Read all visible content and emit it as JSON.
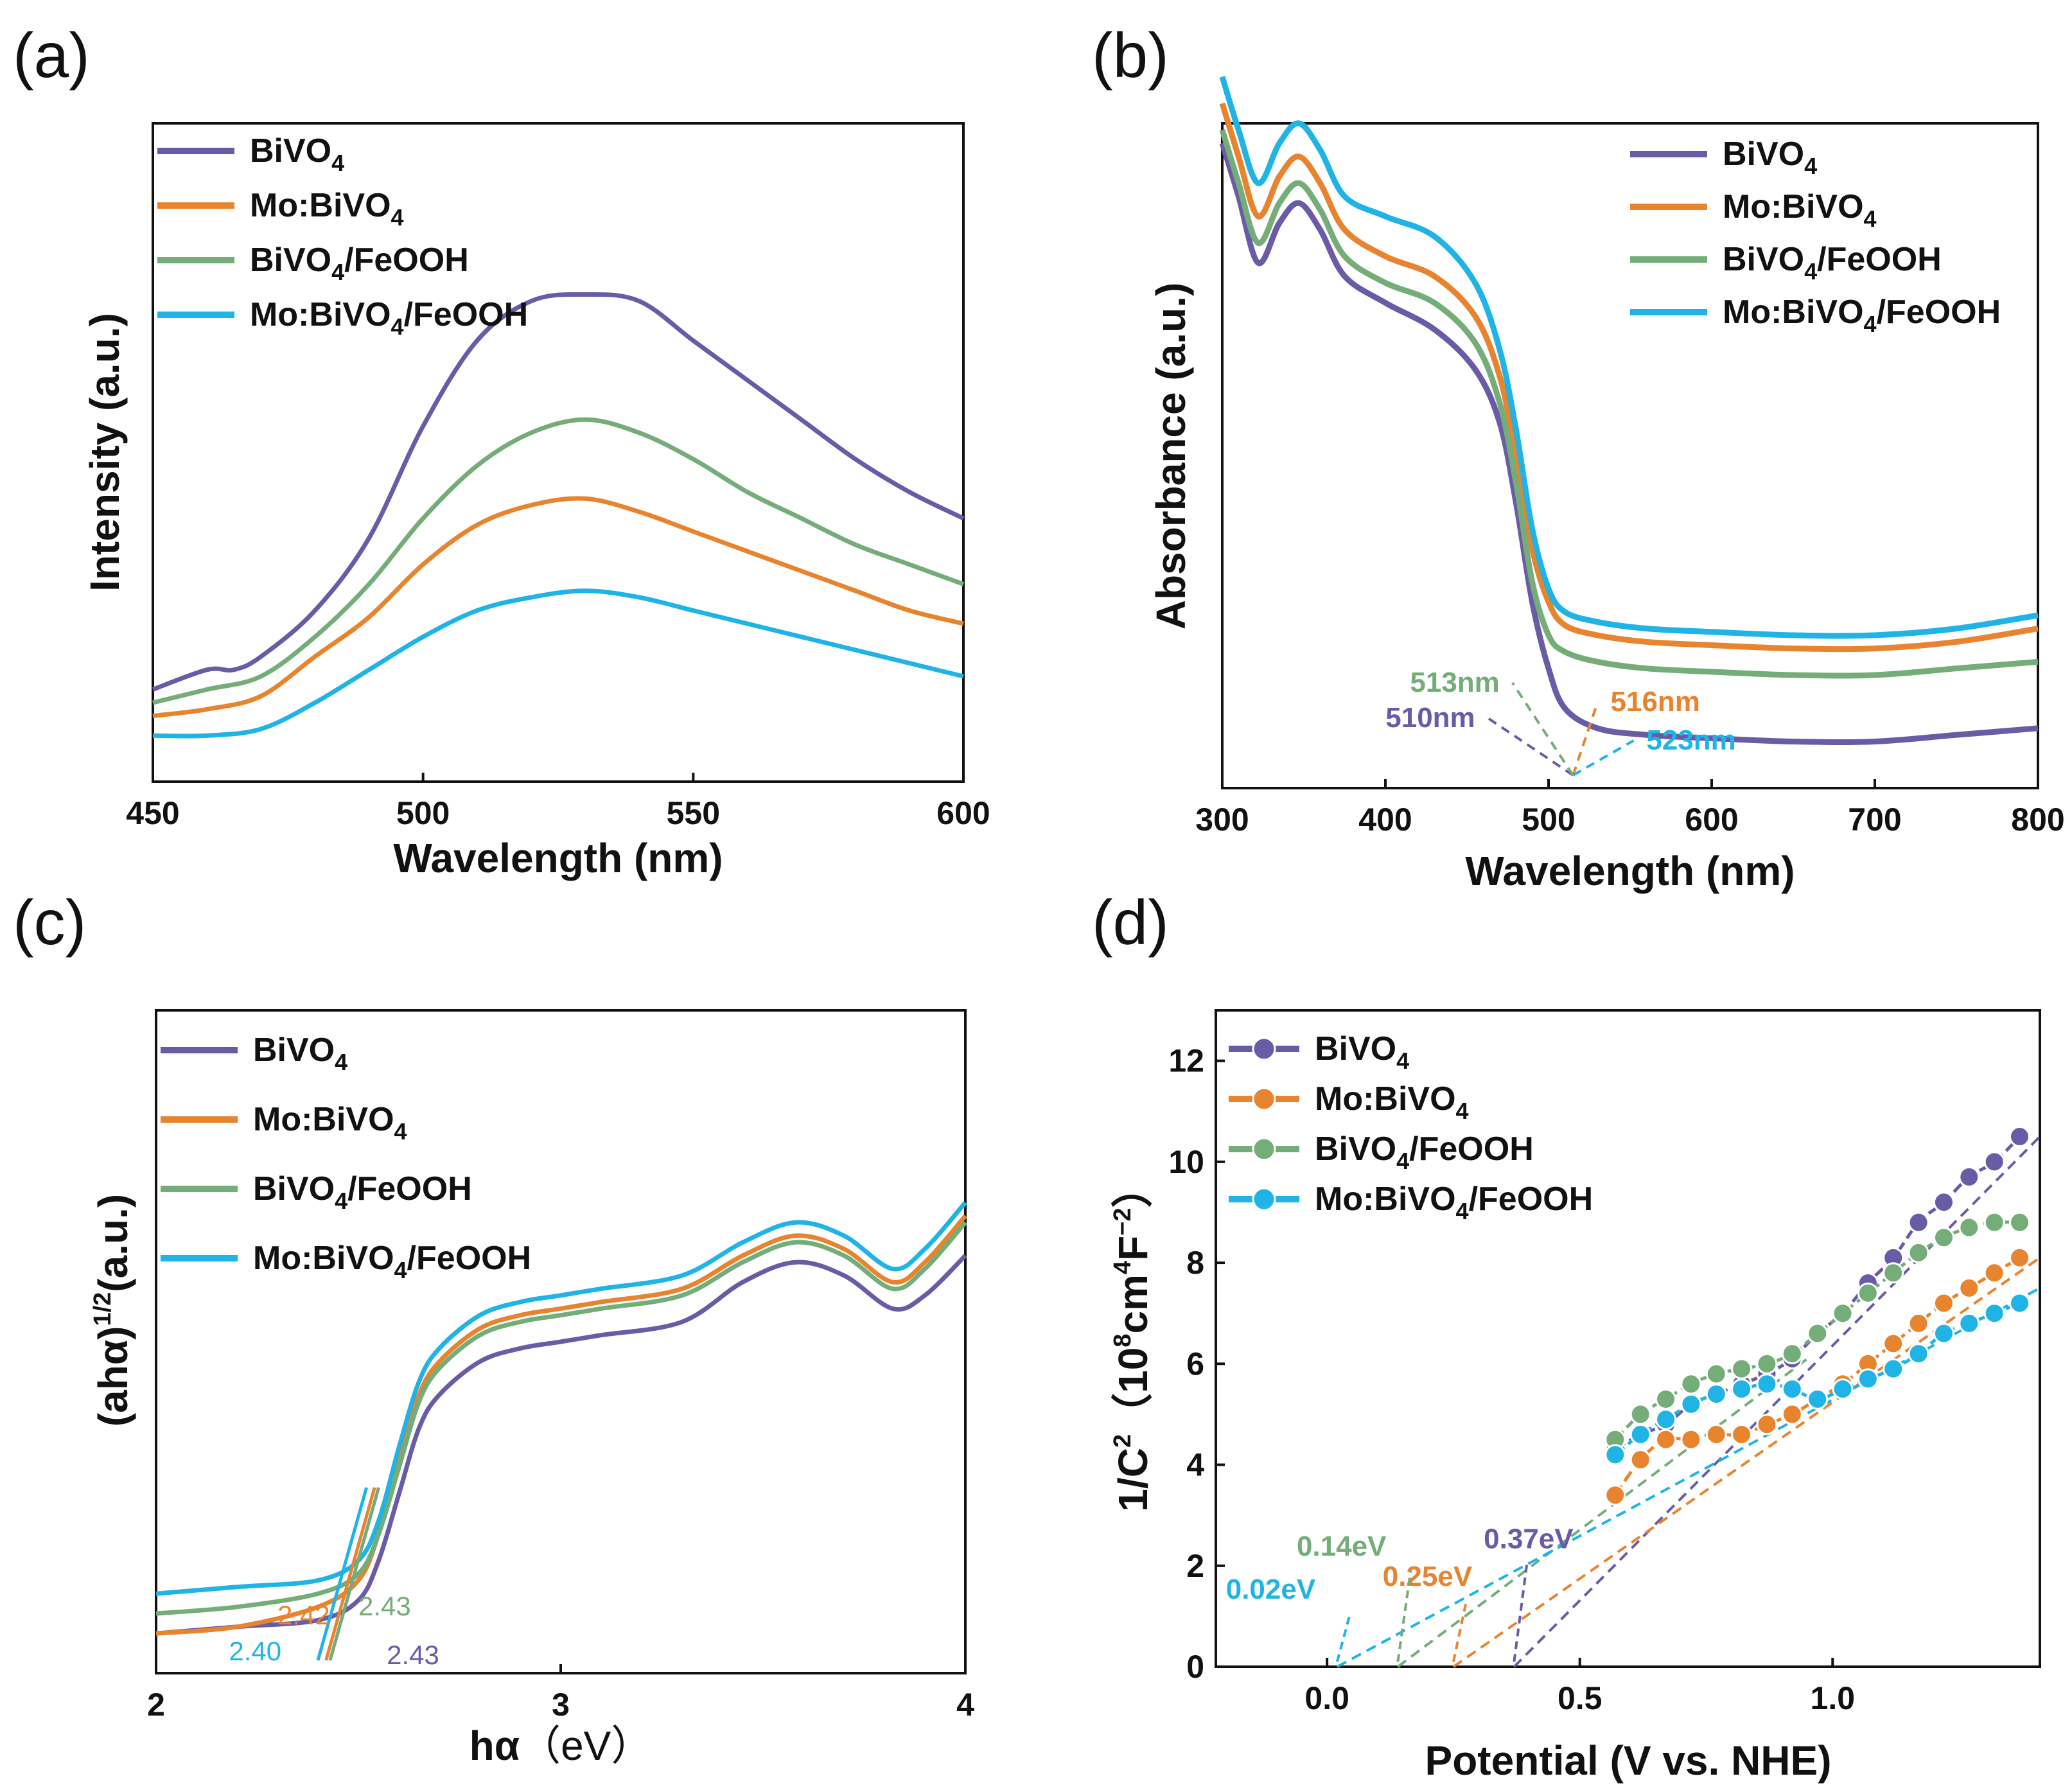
{
  "figure": {
    "colors": {
      "BiVO4": "#6a5ba6",
      "MoBiVO4": "#e8832e",
      "BiVO4FeOOH": "#74ad78",
      "MoBiVO4FeOOH": "#1fb3e6"
    }
  },
  "chart_data": [
    {
      "panel": "(a)",
      "type": "line",
      "xlabel": "Wavelength (nm)",
      "ylabel": "Intensity (a.u.)",
      "xlim": [
        450,
        600
      ],
      "ylim": [
        0,
        1.0
      ],
      "xticks": [
        "450",
        "500",
        "550",
        "600"
      ],
      "legend": [
        "BiVO",
        "Mo:BiVO",
        "BiVO/FeOOH",
        "Mo:BiVO/FeOOH"
      ],
      "legend_sub": "4",
      "series": [
        {
          "name": "BiVO4",
          "color_key": "BiVO4",
          "x": [
            450,
            460,
            465,
            470,
            480,
            490,
            500,
            510,
            520,
            530,
            540,
            550,
            560,
            570,
            580,
            590,
            600
          ],
          "y": [
            0.14,
            0.17,
            0.17,
            0.19,
            0.26,
            0.37,
            0.54,
            0.67,
            0.73,
            0.74,
            0.73,
            0.67,
            0.61,
            0.55,
            0.49,
            0.44,
            0.4
          ]
        },
        {
          "name": "Mo:BiVO4",
          "color_key": "MoBiVO4",
          "x": [
            450,
            460,
            470,
            480,
            490,
            500,
            510,
            520,
            530,
            540,
            550,
            560,
            570,
            580,
            590,
            600
          ],
          "y": [
            0.1,
            0.11,
            0.13,
            0.19,
            0.25,
            0.33,
            0.39,
            0.42,
            0.43,
            0.41,
            0.38,
            0.35,
            0.32,
            0.29,
            0.26,
            0.24
          ]
        },
        {
          "name": "BiVO4/FeOOH",
          "color_key": "BiVO4FeOOH",
          "x": [
            450,
            460,
            470,
            480,
            490,
            500,
            510,
            520,
            530,
            540,
            550,
            560,
            570,
            580,
            590,
            600
          ],
          "y": [
            0.12,
            0.14,
            0.16,
            0.22,
            0.3,
            0.4,
            0.48,
            0.53,
            0.55,
            0.53,
            0.49,
            0.44,
            0.4,
            0.36,
            0.33,
            0.3
          ]
        },
        {
          "name": "Mo:BiVO4/FeOOH",
          "color_key": "MoBiVO4FeOOH",
          "x": [
            450,
            460,
            470,
            480,
            490,
            500,
            510,
            520,
            530,
            540,
            550,
            560,
            570,
            580,
            590,
            600
          ],
          "y": [
            0.07,
            0.07,
            0.08,
            0.12,
            0.17,
            0.22,
            0.26,
            0.28,
            0.29,
            0.28,
            0.26,
            0.24,
            0.22,
            0.2,
            0.18,
            0.16
          ]
        }
      ]
    },
    {
      "panel": "(b)",
      "type": "line",
      "xlabel": "Wavelength (nm)",
      "ylabel": "Absorbance (a.u.)",
      "xlim": [
        300,
        800
      ],
      "ylim": [
        0,
        1.0
      ],
      "xticks": [
        "300",
        "400",
        "500",
        "600",
        "700",
        "800"
      ],
      "legend": [
        "BiVO",
        "Mo:BiVO",
        "BiVO/FeOOH",
        "Mo:BiVO/FeOOH"
      ],
      "legend_sub": "4",
      "annotations": [
        {
          "text": "510nm",
          "color_key": "BiVO4",
          "x_data": 510
        },
        {
          "text": "513nm",
          "color_key": "BiVO4FeOOH",
          "x_data": 513
        },
        {
          "text": "516nm",
          "color_key": "MoBiVO4",
          "x_data": 516
        },
        {
          "text": "523nm",
          "color_key": "MoBiVO4FeOOH",
          "x_data": 523
        }
      ],
      "series": [
        {
          "name": "BiVO4",
          "color_key": "BiVO4",
          "x": [
            300,
            310,
            322,
            335,
            347,
            360,
            375,
            400,
            430,
            455,
            470,
            480,
            490,
            500,
            510,
            530,
            560,
            600,
            650,
            700,
            750,
            800
          ],
          "y": [
            0.97,
            0.89,
            0.79,
            0.85,
            0.88,
            0.84,
            0.77,
            0.73,
            0.69,
            0.63,
            0.55,
            0.43,
            0.28,
            0.18,
            0.12,
            0.09,
            0.08,
            0.075,
            0.07,
            0.07,
            0.08,
            0.09
          ]
        },
        {
          "name": "Mo:BiVO4",
          "color_key": "MoBiVO4",
          "x": [
            300,
            310,
            322,
            335,
            347,
            360,
            375,
            400,
            430,
            455,
            470,
            480,
            490,
            500,
            510,
            530,
            560,
            600,
            650,
            700,
            750,
            800
          ],
          "y": [
            1.03,
            0.95,
            0.86,
            0.92,
            0.95,
            0.91,
            0.84,
            0.8,
            0.77,
            0.71,
            0.62,
            0.5,
            0.36,
            0.28,
            0.245,
            0.23,
            0.22,
            0.215,
            0.21,
            0.21,
            0.22,
            0.24
          ]
        },
        {
          "name": "BiVO4/FeOOH",
          "color_key": "BiVO4FeOOH",
          "x": [
            300,
            310,
            322,
            335,
            347,
            360,
            375,
            400,
            430,
            455,
            470,
            480,
            490,
            500,
            510,
            530,
            560,
            600,
            650,
            700,
            750,
            800
          ],
          "y": [
            0.99,
            0.91,
            0.82,
            0.88,
            0.91,
            0.87,
            0.8,
            0.76,
            0.73,
            0.67,
            0.58,
            0.46,
            0.31,
            0.23,
            0.205,
            0.19,
            0.18,
            0.175,
            0.17,
            0.17,
            0.18,
            0.19
          ]
        },
        {
          "name": "Mo:BiVO4/FeOOH",
          "color_key": "MoBiVO4FeOOH",
          "x": [
            300,
            310,
            322,
            335,
            347,
            360,
            375,
            400,
            430,
            455,
            470,
            480,
            490,
            500,
            510,
            530,
            560,
            600,
            650,
            700,
            750,
            800
          ],
          "y": [
            1.07,
            0.99,
            0.91,
            0.97,
            1.0,
            0.96,
            0.89,
            0.86,
            0.83,
            0.76,
            0.66,
            0.54,
            0.39,
            0.3,
            0.265,
            0.25,
            0.24,
            0.235,
            0.23,
            0.23,
            0.24,
            0.26
          ]
        }
      ]
    },
    {
      "panel": "(c)",
      "type": "line",
      "xlabel_main": "hα",
      "xlabel_unit": "（eV）",
      "ylabel_main": "(ahα)",
      "ylabel_sup": "1/2",
      "ylabel_unit": "(a.u.)",
      "xlim": [
        2.0,
        4.0
      ],
      "ylim": [
        0,
        1.0
      ],
      "xticks": [
        "2",
        "3",
        "4"
      ],
      "legend": [
        "BiVO",
        "Mo:BiVO",
        "BiVO/FeOOH",
        "Mo:BiVO/FeOOH"
      ],
      "legend_sub": "4",
      "annotations": [
        {
          "text": "2.43",
          "color_key": "BiVO4",
          "x_data": 2.43
        },
        {
          "text": "2.42",
          "color_key": "MoBiVO4",
          "x_data": 2.42
        },
        {
          "text": "2.43",
          "color_key": "BiVO4FeOOH",
          "x_data": 2.43
        },
        {
          "text": "2.40",
          "color_key": "MoBiVO4FeOOH",
          "x_data": 2.4
        }
      ],
      "series": [
        {
          "name": "BiVO4",
          "color_key": "BiVO4",
          "x": [
            2.0,
            2.2,
            2.4,
            2.5,
            2.55,
            2.6,
            2.65,
            2.7,
            2.8,
            2.9,
            3.0,
            3.1,
            3.3,
            3.45,
            3.58,
            3.7,
            3.82,
            3.9,
            4.0
          ],
          "y": [
            0.06,
            0.07,
            0.08,
            0.11,
            0.17,
            0.27,
            0.37,
            0.42,
            0.47,
            0.49,
            0.5,
            0.51,
            0.53,
            0.59,
            0.62,
            0.6,
            0.55,
            0.57,
            0.63
          ]
        },
        {
          "name": "Mo:BiVO4",
          "color_key": "MoBiVO4",
          "x": [
            2.0,
            2.2,
            2.4,
            2.5,
            2.55,
            2.6,
            2.65,
            2.7,
            2.8,
            2.9,
            3.0,
            3.1,
            3.3,
            3.45,
            3.58,
            3.7,
            3.82,
            3.9,
            4.0
          ],
          "y": [
            0.06,
            0.07,
            0.1,
            0.14,
            0.21,
            0.32,
            0.42,
            0.47,
            0.52,
            0.54,
            0.55,
            0.56,
            0.58,
            0.63,
            0.66,
            0.64,
            0.59,
            0.62,
            0.69
          ]
        },
        {
          "name": "BiVO4/FeOOH",
          "color_key": "BiVO4FeOOH",
          "x": [
            2.0,
            2.2,
            2.4,
            2.5,
            2.55,
            2.6,
            2.65,
            2.7,
            2.8,
            2.9,
            3.0,
            3.1,
            3.3,
            3.45,
            3.58,
            3.7,
            3.82,
            3.9,
            4.0
          ],
          "y": [
            0.09,
            0.1,
            0.12,
            0.15,
            0.21,
            0.31,
            0.41,
            0.46,
            0.51,
            0.53,
            0.54,
            0.55,
            0.57,
            0.62,
            0.65,
            0.63,
            0.58,
            0.61,
            0.68
          ]
        },
        {
          "name": "Mo:BiVO4/FeOOH",
          "color_key": "MoBiVO4FeOOH",
          "x": [
            2.0,
            2.2,
            2.4,
            2.5,
            2.55,
            2.6,
            2.65,
            2.7,
            2.8,
            2.9,
            3.0,
            3.1,
            3.3,
            3.45,
            3.58,
            3.7,
            3.82,
            3.9,
            4.0
          ],
          "y": [
            0.12,
            0.13,
            0.14,
            0.17,
            0.23,
            0.34,
            0.44,
            0.49,
            0.54,
            0.56,
            0.57,
            0.58,
            0.6,
            0.65,
            0.68,
            0.66,
            0.61,
            0.64,
            0.71
          ]
        }
      ]
    },
    {
      "panel": "(d)",
      "type": "scatter",
      "xlabel": "Potential (V vs. NHE)",
      "ylabel_main": "1/C",
      "ylabel_sup1": "2",
      "ylabel_unit_a": "（10",
      "ylabel_sup2": "8",
      "ylabel_unit_b": "cm",
      "ylabel_sup3": "4",
      "ylabel_unit_c": "F",
      "ylabel_sup4": "−2",
      "ylabel_unit_d": "）",
      "xlim": [
        -0.22,
        1.41
      ],
      "ylim": [
        0,
        13
      ],
      "xticks": [
        "0.0",
        "0.5",
        "1.0"
      ],
      "xtick_values": [
        0.0,
        0.5,
        1.0
      ],
      "yticks": [
        "0",
        "2",
        "4",
        "6",
        "8",
        "10",
        "12"
      ],
      "ytick_values": [
        0,
        2,
        4,
        6,
        8,
        10,
        12
      ],
      "legend": [
        "BiVO",
        "Mo:BiVO",
        "BiVO/FeOOH",
        "Mo:BiVO/FeOOH"
      ],
      "legend_sub": "4",
      "annotations": [
        {
          "text": "0.37eV",
          "color_key": "BiVO4",
          "x_data": 0.37
        },
        {
          "text": "0.25eV",
          "color_key": "MoBiVO4",
          "x_data": 0.25
        },
        {
          "text": "0.14eV",
          "color_key": "BiVO4FeOOH",
          "x_data": 0.14
        },
        {
          "text": "0.02eV",
          "color_key": "MoBiVO4FeOOH",
          "x_data": 0.02
        }
      ],
      "series": [
        {
          "name": "BiVO4",
          "color_key": "BiVO4",
          "x": [
            0.57,
            0.62,
            0.67,
            0.72,
            0.77,
            0.82,
            0.87,
            0.92,
            0.97,
            1.02,
            1.07,
            1.12,
            1.17,
            1.22,
            1.27,
            1.32,
            1.37
          ],
          "y": [
            4.3,
            4.6,
            4.8,
            5.2,
            5.4,
            5.6,
            5.8,
            6.1,
            6.6,
            7.0,
            7.6,
            8.1,
            8.8,
            9.2,
            9.7,
            10.0,
            10.5
          ],
          "fit": [
            0.37,
            1.41
          ]
        },
        {
          "name": "Mo:BiVO4",
          "color_key": "MoBiVO4",
          "x": [
            0.57,
            0.62,
            0.67,
            0.72,
            0.77,
            0.82,
            0.87,
            0.92,
            0.97,
            1.02,
            1.07,
            1.12,
            1.17,
            1.22,
            1.27,
            1.32,
            1.37
          ],
          "y": [
            3.4,
            4.1,
            4.5,
            4.5,
            4.6,
            4.6,
            4.8,
            5.0,
            5.3,
            5.6,
            6.0,
            6.4,
            6.8,
            7.2,
            7.5,
            7.8,
            8.1
          ],
          "fit": [
            0.25,
            1.41
          ]
        },
        {
          "name": "BiVO4/FeOOH",
          "color_key": "BiVO4FeOOH",
          "x": [
            0.57,
            0.62,
            0.67,
            0.72,
            0.77,
            0.82,
            0.87,
            0.92,
            0.97,
            1.02,
            1.07,
            1.12,
            1.17,
            1.22,
            1.27,
            1.32,
            1.37
          ],
          "y": [
            4.5,
            5.0,
            5.3,
            5.6,
            5.8,
            5.9,
            6.0,
            6.2,
            6.6,
            7.0,
            7.4,
            7.8,
            8.2,
            8.5,
            8.7,
            8.8,
            8.8
          ],
          "fit": [
            0.14,
            0.95
          ]
        },
        {
          "name": "Mo:BiVO4/FeOOH",
          "color_key": "MoBiVO4FeOOH",
          "x": [
            0.57,
            0.62,
            0.67,
            0.72,
            0.77,
            0.82,
            0.87,
            0.92,
            0.97,
            1.02,
            1.07,
            1.12,
            1.17,
            1.22,
            1.27,
            1.32,
            1.37
          ],
          "y": [
            4.2,
            4.6,
            4.9,
            5.2,
            5.4,
            5.5,
            5.6,
            5.5,
            5.3,
            5.5,
            5.7,
            5.9,
            6.2,
            6.6,
            6.8,
            7.0,
            7.2
          ],
          "fit": [
            0.02,
            1.41
          ]
        }
      ]
    }
  ],
  "panels": {
    "a_label": "(a)",
    "b_label": "(b)",
    "c_label": "(c)",
    "d_label": "(d)"
  }
}
